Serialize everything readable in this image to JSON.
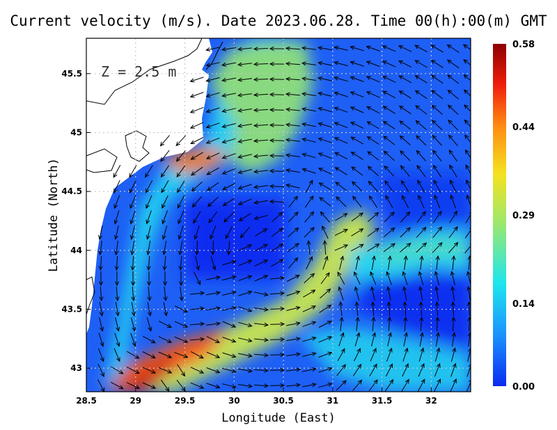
{
  "chart_data": {
    "type": "heatmap",
    "title": "Current velocity (m/s). Date 2023.06.28. Time 00(h):00(m) GMT",
    "xlabel": "Longitude (East)",
    "ylabel": "Latitude (North)",
    "xlim": [
      28.5,
      32.4
    ],
    "ylim": [
      42.8,
      45.8
    ],
    "x_ticks": [
      "28.5",
      "29",
      "29.5",
      "30",
      "30.5",
      "31",
      "31.5",
      "32"
    ],
    "y_ticks": [
      "43",
      "43.5",
      "44",
      "44.5",
      "45",
      "45.5"
    ],
    "annotation": "Z = 2.5 m",
    "grid": true,
    "colorbar": {
      "ticks": [
        "0.00",
        "0.14",
        "0.29",
        "0.44",
        "0.58"
      ],
      "range": [
        0.0,
        0.58
      ],
      "colors": [
        "#0a2bf0",
        "#1a8cff",
        "#1ee6ee",
        "#9fe86a",
        "#f5e21f",
        "#ff8b12",
        "#f01e0c",
        "#8c0000"
      ]
    },
    "features": [
      {
        "name": "northwest shelf coastal jet",
        "speed": 0.35
      },
      {
        "name": "jet near 44.75N 29.6E",
        "speed": 0.5
      },
      {
        "name": "southwest coastal jet near 43N 29E",
        "speed": 0.55
      },
      {
        "name": "diagonal jet from 29E 43N to 30.8E 44.3N",
        "speed": 0.35
      },
      {
        "name": "central basin gyre interior",
        "speed": 0.05
      },
      {
        "name": "eastward jet near 44.1N 31.5E",
        "speed": 0.25
      },
      {
        "name": "southeast basin",
        "speed": 0.06
      }
    ]
  }
}
